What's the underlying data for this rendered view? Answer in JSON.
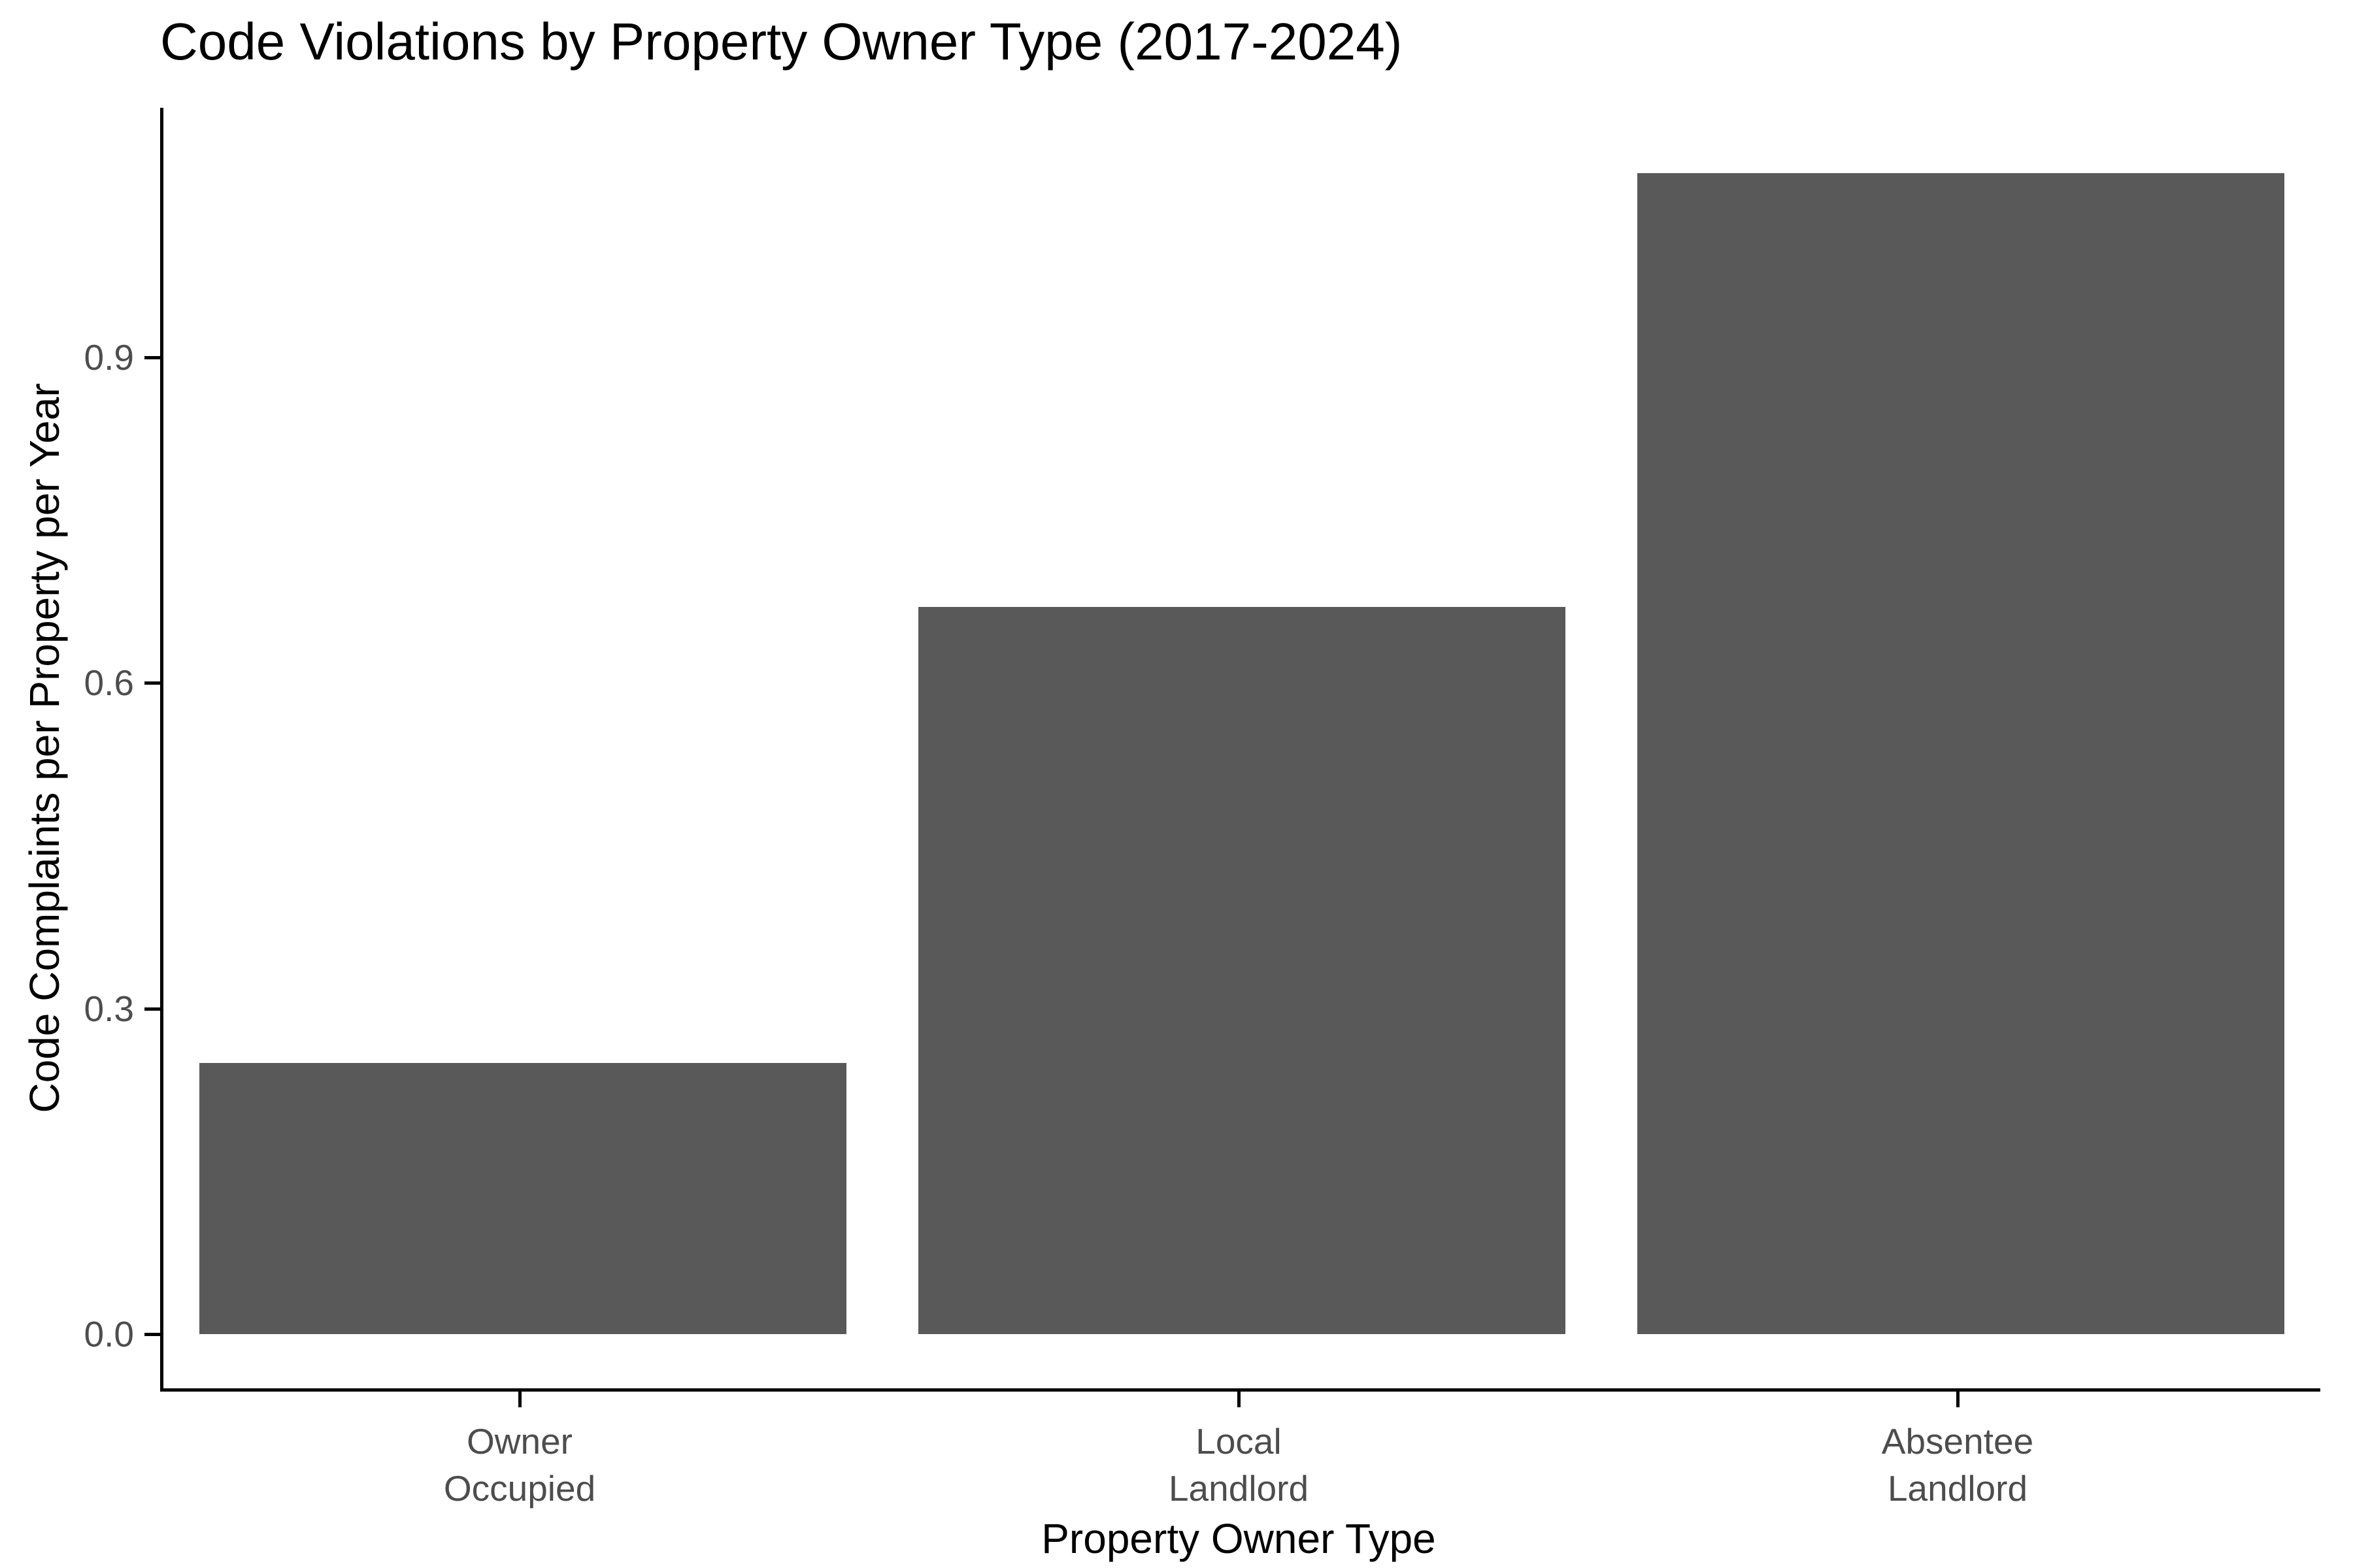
{
  "chart_data": {
    "type": "bar",
    "title": "Code Violations by Property Owner Type (2017-2024)",
    "xlabel": "Property Owner Type",
    "ylabel": "Code Complaints per Property per Year",
    "categories": [
      "Owner\nOccupied",
      "Local\nLandlord",
      "Absentee\nLandlord"
    ],
    "values": [
      0.25,
      0.67,
      1.07
    ],
    "yticks": [
      {
        "label": "0.0",
        "value": 0.0
      },
      {
        "label": "0.3",
        "value": 0.3
      },
      {
        "label": "0.6",
        "value": 0.6
      },
      {
        "label": "0.9",
        "value": 0.9
      }
    ],
    "ylim": [
      -0.05,
      1.13
    ],
    "bar_width_fraction": 0.9,
    "colors": {
      "bar": "#595959",
      "axis": "#000000",
      "tick_label": "#4D4D4D",
      "background": "#FFFFFF"
    },
    "grid": false,
    "legend": "none"
  }
}
